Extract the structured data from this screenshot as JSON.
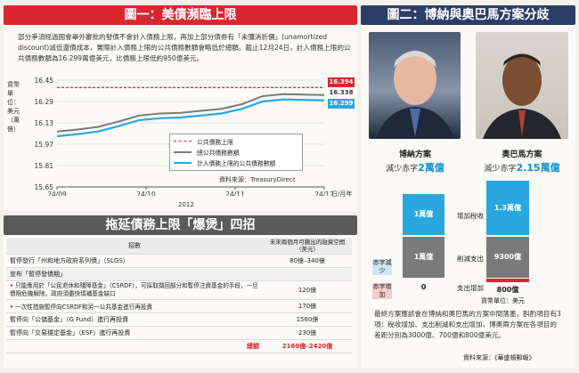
{
  "colors": {
    "red": "#d7282f",
    "navy": "#2c3f66",
    "cyan": "#29a8e0",
    "gray": "#7a7a7a"
  },
  "panel1": {
    "title": "圖一：美債瀕臨上限",
    "intro": "部分爭須經過國會舉外審批的發債不會計入債務上限，再加上部分債券有「未彌消折價」(unamortized discount)減低還債成本，實際計入債務上限的公共債務數額會略低於總額。截止12月24日，計入債務上限的公共債務數額為16.299萬億美元，比債務上限低約950億美元。",
    "ylabel": "貨幣單位：美元（萬億）",
    "source": "資料來源：TreasuryDirect",
    "year_label": "2012",
    "date_unit": "日/月年",
    "legend": [
      "公共債務上限",
      "總公共債務數額",
      "計入債務上限的公共債務數額"
    ]
  },
  "chart_data": {
    "type": "line",
    "x_ticks": [
      "24/09",
      "24/10",
      "24/11",
      "24/12"
    ],
    "yticks": [
      "16.45",
      "16.29",
      "16.13",
      "15.97",
      "15.81",
      "15.65"
    ],
    "ylim": [
      15.65,
      16.45
    ],
    "series": [
      {
        "name": "公共債務上限",
        "end_label": "16.394",
        "values": [
          16.394,
          16.394,
          16.394,
          16.394,
          16.394,
          16.394,
          16.394,
          16.394,
          16.394,
          16.394,
          16.394,
          16.394,
          16.394,
          16.394
        ]
      },
      {
        "name": "總公共債務數額",
        "end_label": "16.338",
        "values": [
          16.065,
          16.08,
          16.1,
          16.14,
          16.185,
          16.2,
          16.205,
          16.22,
          16.235,
          16.27,
          16.33,
          16.345,
          16.342,
          16.338
        ]
      },
      {
        "name": "計入債務上限的公共債務數額",
        "end_label": "16.299",
        "values": [
          16.03,
          16.045,
          16.065,
          16.105,
          16.15,
          16.165,
          16.17,
          16.185,
          16.2,
          16.235,
          16.29,
          16.305,
          16.302,
          16.299
        ]
      }
    ]
  },
  "panel2": {
    "title": "拖延債務上限「爆煲」四招",
    "col1": "招數",
    "col2": "未來兩個月可騰出的融資空間（美元）",
    "rows": [
      {
        "label": "暫停發行「州和地方政府系列債」（SLGS）",
        "value": "80億–340億"
      },
      {
        "label": "宣布「暫停發債期」",
        "value": ""
      },
      {
        "label": "• 只能應用於「公民退休和殘障基金」（CSRDF），可採取擷回部分和暫停注資基金的手段，一旦債限危機解除，政府須盡快填補基金缺口",
        "value": "120億"
      },
      {
        "label": "• 一次性措施暫停向CSRDF和另一公共基金進行再投資",
        "value": "170億"
      },
      {
        "label": "暫停向「公儲基金」（G Fund）進行再投資",
        "value": "1560億"
      },
      {
        "label": "暫停向「交易穩定基金」（ESF）進行再投資",
        "value": "230億"
      }
    ],
    "total_label": "總額",
    "total_value": "2160億–2420億"
  },
  "panel3": {
    "title": "圖二：博納與奧巴馬方案分歧",
    "boehner": {
      "name": "博納方案",
      "sub_prefix": "減少赤字",
      "sub_value": "2萬億"
    },
    "obama": {
      "name": "奧巴馬方案",
      "sub_prefix": "減少赤字",
      "sub_value": "2.15萬億"
    },
    "mid_labels": [
      "增加稅收",
      "削減支出",
      "支出增加"
    ],
    "side_reduce": "赤字減少",
    "side_increase": "赤字增加",
    "boehner_bars": [
      "1萬億",
      "1萬億",
      "0"
    ],
    "obama_bars": [
      "1.3萬億",
      "9300億",
      "800億"
    ],
    "unit": "貨幣單位：美元",
    "note": "最終方案應該會在博納和奧巴馬的方案中間落墨，斟酌項目有3項：稅收增加、支出削減和支出增加，博奧兩方案在各項目的差距分別為3000億、700億和800億美元。",
    "source": "資料來源：《華盛頓郵報》"
  }
}
